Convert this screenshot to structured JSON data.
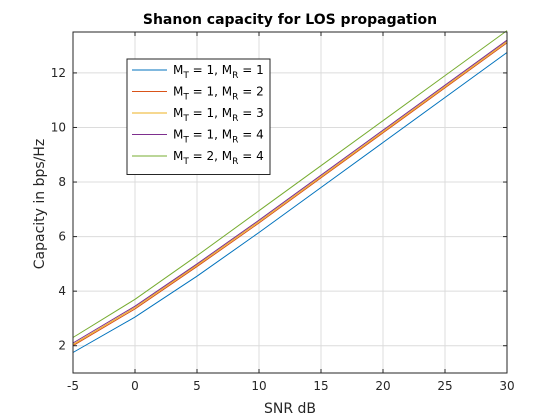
{
  "chart_data": {
    "type": "line",
    "title": "Shanon capacity for LOS propagation",
    "xlabel": "SNR dB",
    "ylabel": "Capacity in bps/Hz",
    "xlim": [
      -5,
      30
    ],
    "ylim": [
      1,
      13.5
    ],
    "xticks": [
      -5,
      0,
      5,
      10,
      15,
      20,
      25,
      30
    ],
    "yticks": [
      2,
      4,
      6,
      8,
      10,
      12
    ],
    "grid": true,
    "legend_position": "top-left",
    "x": [
      -5,
      0,
      5,
      10,
      15,
      20,
      25,
      30
    ],
    "series": [
      {
        "name_parts": [
          "M",
          "T",
          " = 1, M",
          "R",
          " = 1"
        ],
        "color": "#0072BD",
        "values": [
          1.75,
          3.05,
          4.55,
          6.15,
          7.8,
          9.45,
          11.1,
          12.75
        ]
      },
      {
        "name_parts": [
          "M",
          "T",
          " = 1, M",
          "R",
          " = 2"
        ],
        "color": "#D95319",
        "values": [
          2.0,
          3.35,
          4.9,
          6.5,
          8.15,
          9.8,
          11.45,
          13.1
        ]
      },
      {
        "name_parts": [
          "M",
          "T",
          " = 1, M",
          "R",
          " = 3"
        ],
        "color": "#EDB120",
        "values": [
          2.05,
          3.4,
          4.95,
          6.55,
          8.2,
          9.85,
          11.5,
          13.15
        ]
      },
      {
        "name_parts": [
          "M",
          "T",
          " = 1, M",
          "R",
          " = 4"
        ],
        "color": "#7E2F8E",
        "values": [
          2.1,
          3.45,
          5.0,
          6.6,
          8.25,
          9.9,
          11.55,
          13.2
        ]
      },
      {
        "name_parts": [
          "M",
          "T",
          " = 2, M",
          "R",
          " = 4"
        ],
        "color": "#77AC30",
        "values": [
          2.3,
          3.7,
          5.3,
          6.95,
          8.6,
          10.25,
          11.9,
          13.55
        ]
      }
    ]
  }
}
